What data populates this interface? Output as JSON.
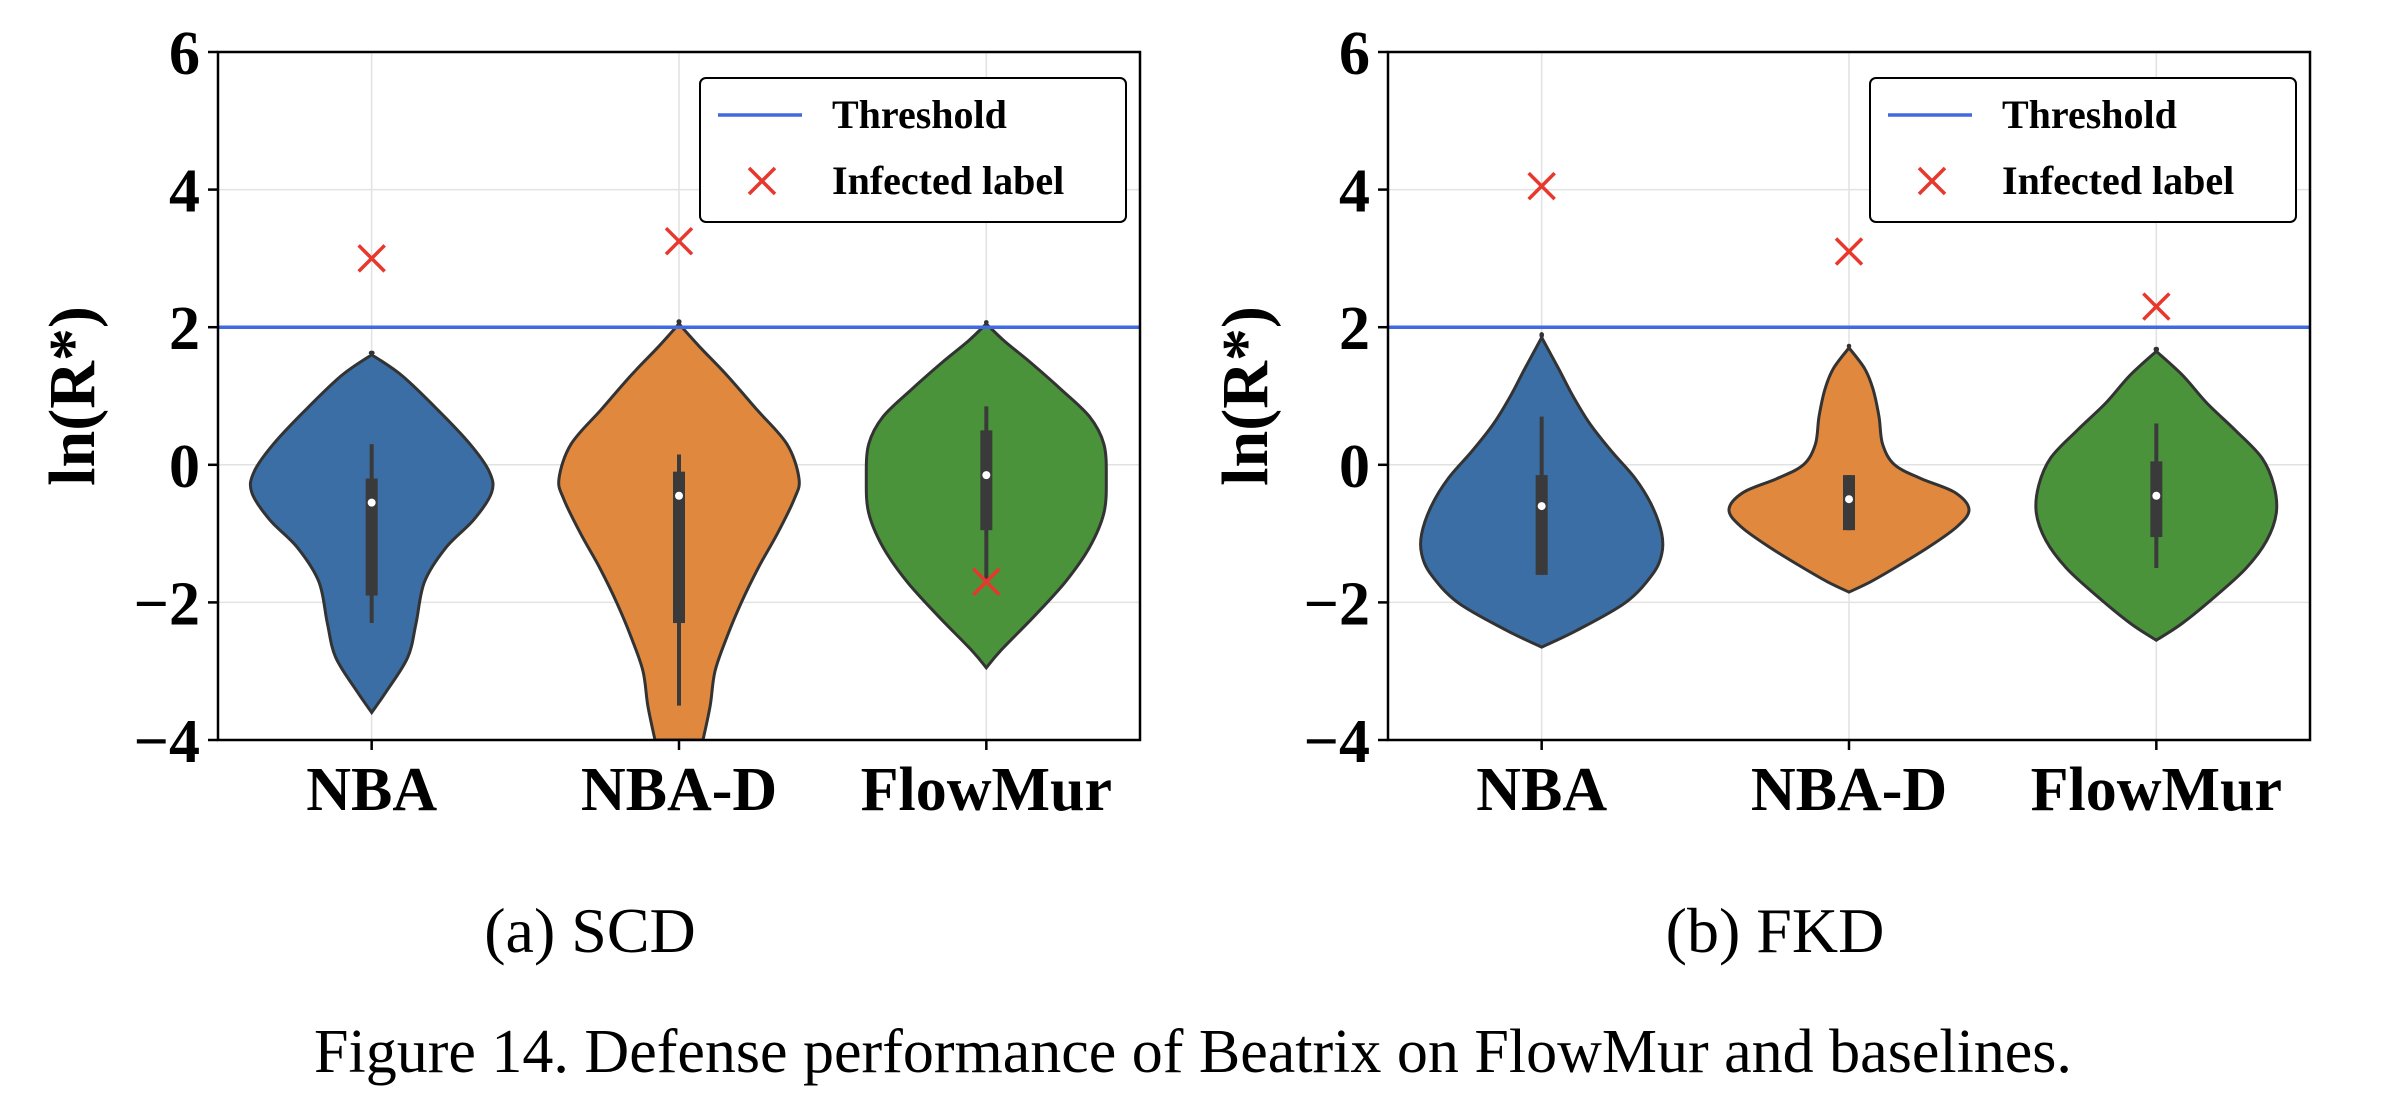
{
  "caption": "Figure 14. Defense performance of Beatrix on FlowMur and baselines.",
  "legend": {
    "threshold": "Threshold",
    "infected": "Infected label"
  },
  "colors": {
    "NBA": "#3a6ea5",
    "NBA-D": "#e0883e",
    "FlowMur": "#4a933b",
    "threshold": "#4169e1",
    "infected": "#e8372c",
    "outline": "#333333"
  },
  "chart_data": [
    {
      "type": "violin",
      "subtitle": "(a) SCD",
      "ylabel": "ln(R*)",
      "ylim": [
        -4,
        6
      ],
      "yticks": [
        -4,
        -2,
        0,
        2,
        4,
        6
      ],
      "ytick_labels": [
        "−4",
        "−2",
        "0",
        "2",
        "4",
        "6"
      ],
      "grid": true,
      "legend_position": "top-right",
      "categories": [
        "NBA",
        "NBA-D",
        "FlowMur"
      ],
      "threshold": 2,
      "violins": [
        {
          "name": "NBA",
          "ymin": -3.6,
          "ymax": 1.6,
          "q1": -1.9,
          "median": -0.55,
          "q3": -0.2,
          "wlow": -2.3,
          "whigh": 0.3,
          "profile": [
            [
              -3.6,
              0.0
            ],
            [
              -3.3,
              0.12
            ],
            [
              -2.8,
              0.3
            ],
            [
              -2.3,
              0.37
            ],
            [
              -1.7,
              0.44
            ],
            [
              -1.2,
              0.62
            ],
            [
              -0.8,
              0.85
            ],
            [
              -0.4,
              1.0
            ],
            [
              -0.1,
              0.98
            ],
            [
              0.3,
              0.82
            ],
            [
              0.8,
              0.55
            ],
            [
              1.3,
              0.25
            ],
            [
              1.6,
              0.0
            ]
          ]
        },
        {
          "name": "NBA-D",
          "ymin": -4.0,
          "ymax": 2.05,
          "q1": -2.3,
          "median": -0.45,
          "q3": -0.1,
          "wlow": -3.5,
          "whigh": 0.15,
          "profile": [
            [
              -4.0,
              0.2
            ],
            [
              -3.5,
              0.26
            ],
            [
              -3.0,
              0.3
            ],
            [
              -2.5,
              0.4
            ],
            [
              -2.0,
              0.52
            ],
            [
              -1.5,
              0.66
            ],
            [
              -1.0,
              0.82
            ],
            [
              -0.5,
              0.96
            ],
            [
              -0.2,
              1.0
            ],
            [
              0.3,
              0.9
            ],
            [
              0.8,
              0.65
            ],
            [
              1.3,
              0.4
            ],
            [
              1.7,
              0.18
            ],
            [
              2.05,
              0.0
            ]
          ]
        },
        {
          "name": "FlowMur",
          "ymin": -2.95,
          "ymax": 2.05,
          "q1": -0.95,
          "median": -0.15,
          "q3": 0.5,
          "wlow": -1.7,
          "whigh": 0.85,
          "profile": [
            [
              -2.95,
              0.0
            ],
            [
              -2.7,
              0.12
            ],
            [
              -2.2,
              0.4
            ],
            [
              -1.7,
              0.66
            ],
            [
              -1.2,
              0.86
            ],
            [
              -0.7,
              0.98
            ],
            [
              -0.2,
              1.0
            ],
            [
              0.3,
              0.98
            ],
            [
              0.7,
              0.86
            ],
            [
              1.1,
              0.62
            ],
            [
              1.5,
              0.36
            ],
            [
              1.8,
              0.15
            ],
            [
              2.05,
              0.0
            ]
          ]
        }
      ],
      "infected": [
        {
          "category": "NBA",
          "value": 3.0
        },
        {
          "category": "NBA-D",
          "value": 3.25
        },
        {
          "category": "FlowMur",
          "value": -1.7
        }
      ]
    },
    {
      "type": "violin",
      "subtitle": "(b) FKD",
      "ylabel": "ln(R*)",
      "ylim": [
        -4,
        6
      ],
      "yticks": [
        -4,
        -2,
        0,
        2,
        4,
        6
      ],
      "ytick_labels": [
        "−4",
        "−2",
        "0",
        "2",
        "4",
        "6"
      ],
      "grid": true,
      "legend_position": "top-right",
      "categories": [
        "NBA",
        "NBA-D",
        "FlowMur"
      ],
      "threshold": 2,
      "violins": [
        {
          "name": "NBA",
          "ymin": -2.65,
          "ymax": 1.85,
          "q1": -1.6,
          "median": -0.6,
          "q3": -0.15,
          "wlow": -1.6,
          "whigh": 0.7,
          "profile": [
            [
              -2.65,
              0.0
            ],
            [
              -2.4,
              0.3
            ],
            [
              -2.0,
              0.7
            ],
            [
              -1.6,
              0.92
            ],
            [
              -1.3,
              1.0
            ],
            [
              -1.0,
              1.0
            ],
            [
              -0.6,
              0.92
            ],
            [
              -0.2,
              0.78
            ],
            [
              0.2,
              0.58
            ],
            [
              0.6,
              0.4
            ],
            [
              1.0,
              0.26
            ],
            [
              1.4,
              0.14
            ],
            [
              1.85,
              0.0
            ]
          ]
        },
        {
          "name": "NBA-D",
          "ymin": -1.85,
          "ymax": 1.7,
          "q1": -0.95,
          "median": -0.5,
          "q3": -0.15,
          "wlow": -0.95,
          "whigh": -0.15,
          "profile": [
            [
              -1.85,
              0.0
            ],
            [
              -1.7,
              0.18
            ],
            [
              -1.5,
              0.38
            ],
            [
              -1.2,
              0.66
            ],
            [
              -0.9,
              0.9
            ],
            [
              -0.65,
              1.0
            ],
            [
              -0.4,
              0.88
            ],
            [
              -0.2,
              0.6
            ],
            [
              0.0,
              0.38
            ],
            [
              0.3,
              0.28
            ],
            [
              0.7,
              0.25
            ],
            [
              1.1,
              0.2
            ],
            [
              1.4,
              0.13
            ],
            [
              1.7,
              0.0
            ]
          ]
        },
        {
          "name": "FlowMur",
          "ymin": -2.55,
          "ymax": 1.65,
          "q1": -1.05,
          "median": -0.45,
          "q3": 0.05,
          "wlow": -1.5,
          "whigh": 0.6,
          "profile": [
            [
              -2.55,
              0.0
            ],
            [
              -2.3,
              0.22
            ],
            [
              -1.9,
              0.5
            ],
            [
              -1.5,
              0.75
            ],
            [
              -1.1,
              0.92
            ],
            [
              -0.7,
              1.0
            ],
            [
              -0.3,
              0.98
            ],
            [
              0.1,
              0.88
            ],
            [
              0.5,
              0.66
            ],
            [
              0.9,
              0.42
            ],
            [
              1.3,
              0.22
            ],
            [
              1.65,
              0.0
            ]
          ]
        }
      ],
      "infected": [
        {
          "category": "NBA",
          "value": 4.05
        },
        {
          "category": "NBA-D",
          "value": 3.1
        },
        {
          "category": "FlowMur",
          "value": 2.3
        }
      ]
    }
  ]
}
